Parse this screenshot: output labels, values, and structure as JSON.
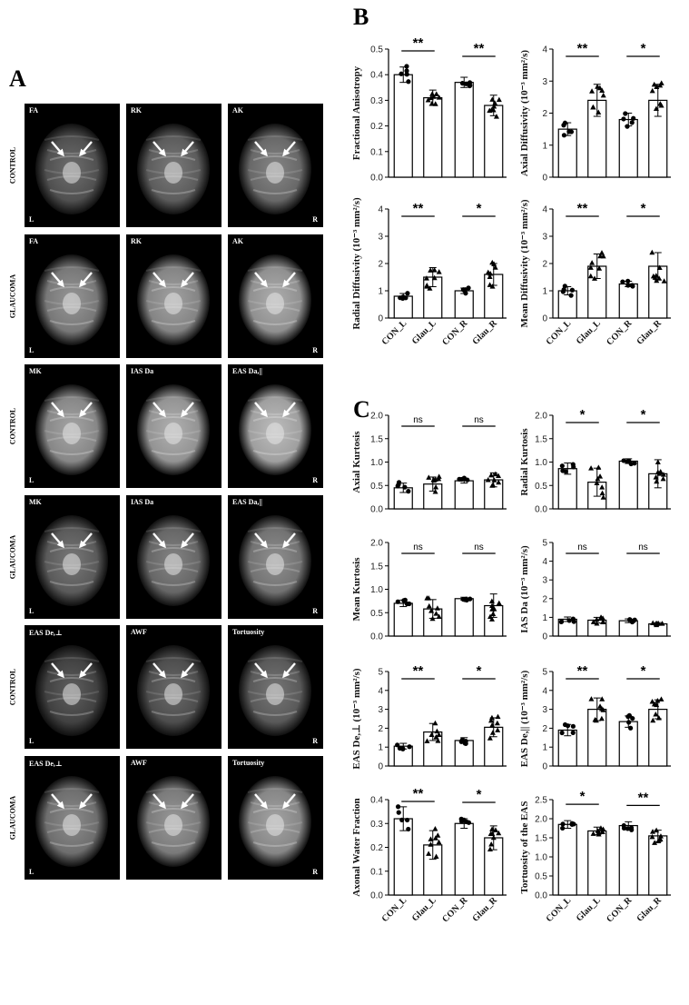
{
  "panel_labels": {
    "a": "A",
    "b": "B",
    "c": "C"
  },
  "image_grid": {
    "rows": [
      {
        "group": "CONTROL",
        "tiles": [
          "FA",
          "RK",
          "AK"
        ]
      },
      {
        "group": "GLAUCOMA",
        "tiles": [
          "FA",
          "RK",
          "AK"
        ]
      },
      {
        "group": "CONTROL",
        "tiles": [
          "MK",
          "IAS Da",
          "EAS Da,||"
        ]
      },
      {
        "group": "GLAUCOMA",
        "tiles": [
          "MK",
          "IAS Da",
          "EAS Da,||"
        ]
      },
      {
        "group": "CONTROL",
        "tiles": [
          "EAS De,⊥",
          "AWF",
          "Tortuosity"
        ]
      },
      {
        "group": "GLAUCOMA",
        "tiles": [
          "EAS De,⊥",
          "AWF",
          "Tortuosity"
        ]
      }
    ],
    "corner_left": "L",
    "corner_right": "R"
  },
  "chart_data": [
    {
      "type": "bar",
      "panel": "B",
      "categories": [
        "CON_L",
        "Glau_L",
        "CON_R",
        "Glau_R"
      ],
      "values": [
        0.4,
        0.31,
        0.37,
        0.28
      ],
      "errors": [
        0.03,
        0.03,
        0.02,
        0.04
      ],
      "ylabel": "Fractional Anisotropy",
      "ylim": [
        0,
        0.5
      ],
      "yticks": [
        "0.0",
        "0.1",
        "0.2",
        "0.3",
        "0.4",
        "0.5"
      ],
      "significance": [
        "**",
        "**"
      ]
    },
    {
      "type": "bar",
      "panel": "B",
      "categories": [
        "CON_L",
        "Glau_L",
        "CON_R",
        "Glau_R"
      ],
      "values": [
        1.5,
        2.4,
        1.8,
        2.4
      ],
      "errors": [
        0.2,
        0.5,
        0.2,
        0.5
      ],
      "ylabel": "Axial Diffusivity (10⁻³ mm²/s)",
      "ylim": [
        0,
        4
      ],
      "yticks": [
        "0",
        "1",
        "2",
        "3",
        "4"
      ],
      "significance": [
        "**",
        "*"
      ]
    },
    {
      "type": "bar",
      "panel": "B",
      "categories": [
        "CON_L",
        "Glau_L",
        "CON_R",
        "Glau_R"
      ],
      "values": [
        0.8,
        1.5,
        1.0,
        1.6
      ],
      "errors": [
        0.1,
        0.35,
        0.1,
        0.4
      ],
      "ylabel": "Radial Diffusivity (10⁻³ mm²/s)",
      "ylim": [
        0,
        4
      ],
      "yticks": [
        "0",
        "1",
        "2",
        "3",
        "4"
      ],
      "significance": [
        "**",
        "*"
      ]
    },
    {
      "type": "bar",
      "panel": "B",
      "categories": [
        "CON_L",
        "Glau_L",
        "CON_R",
        "Glau_R"
      ],
      "values": [
        1.0,
        1.9,
        1.25,
        1.9
      ],
      "errors": [
        0.15,
        0.45,
        0.1,
        0.5
      ],
      "ylabel": "Mean Diffusivity (10⁻³ mm²/s)",
      "ylim": [
        0,
        4
      ],
      "yticks": [
        "0",
        "1",
        "2",
        "3",
        "4"
      ],
      "significance": [
        "**",
        "*"
      ]
    },
    {
      "type": "bar",
      "panel": "C",
      "categories": [
        "CON_L",
        "Glau_L",
        "CON_R",
        "Glau_R"
      ],
      "values": [
        0.45,
        0.53,
        0.6,
        0.62
      ],
      "errors": [
        0.1,
        0.15,
        0.05,
        0.15
      ],
      "ylabel": "Axial Kurtosis",
      "ylim": [
        0,
        2.0
      ],
      "yticks": [
        "0.0",
        "0.5",
        "1.0",
        "1.5",
        "2.0"
      ],
      "significance": [
        "ns",
        "ns"
      ]
    },
    {
      "type": "bar",
      "panel": "C",
      "categories": [
        "CON_L",
        "Glau_L",
        "CON_R",
        "Glau_R"
      ],
      "values": [
        0.86,
        0.57,
        1.02,
        0.75
      ],
      "errors": [
        0.12,
        0.3,
        0.05,
        0.3
      ],
      "ylabel": "Radial Kurtosis",
      "ylim": [
        0,
        2.0
      ],
      "yticks": [
        "0.0",
        "0.5",
        "1.0",
        "1.5",
        "2.0"
      ],
      "significance": [
        "*",
        "*"
      ]
    },
    {
      "type": "bar",
      "panel": "C",
      "categories": [
        "CON_L",
        "Glau_L",
        "CON_R",
        "Glau_R"
      ],
      "values": [
        0.7,
        0.58,
        0.8,
        0.65
      ],
      "errors": [
        0.07,
        0.2,
        0.03,
        0.25
      ],
      "ylabel": "Mean Kurtosis",
      "ylim": [
        0,
        2.0
      ],
      "yticks": [
        "0.0",
        "0.5",
        "1.0",
        "1.5",
        "2.0"
      ],
      "significance": [
        "ns",
        "ns"
      ]
    },
    {
      "type": "bar",
      "panel": "C",
      "categories": [
        "CON_L",
        "Glau_L",
        "CON_R",
        "Glau_R"
      ],
      "values": [
        0.9,
        0.85,
        0.82,
        0.65
      ],
      "errors": [
        0.12,
        0.15,
        0.1,
        0.07
      ],
      "ylabel": "IAS Da (10⁻³ mm²/s)",
      "ylim": [
        0,
        5
      ],
      "yticks": [
        "0",
        "1",
        "2",
        "3",
        "4",
        "5"
      ],
      "significance": [
        "ns",
        "ns"
      ]
    },
    {
      "type": "bar",
      "panel": "C",
      "categories": [
        "CON_L",
        "Glau_L",
        "CON_R",
        "Glau_R"
      ],
      "values": [
        1.05,
        1.8,
        1.35,
        2.05
      ],
      "errors": [
        0.15,
        0.45,
        0.15,
        0.5
      ],
      "ylabel": "EAS De,⊥ (10⁻³ mm²/s)",
      "ylim": [
        0,
        5
      ],
      "yticks": [
        "0",
        "1",
        "2",
        "3",
        "4",
        "5"
      ],
      "significance": [
        "**",
        "*"
      ]
    },
    {
      "type": "bar",
      "panel": "C",
      "categories": [
        "CON_L",
        "Glau_L",
        "CON_R",
        "Glau_R"
      ],
      "values": [
        1.9,
        3.0,
        2.35,
        3.0
      ],
      "errors": [
        0.3,
        0.6,
        0.3,
        0.5
      ],
      "ylabel": "EAS De,|| (10⁻³ mm²/s)",
      "ylim": [
        0,
        5
      ],
      "yticks": [
        "0",
        "1",
        "2",
        "3",
        "4",
        "5"
      ],
      "significance": [
        "**",
        "*"
      ]
    },
    {
      "type": "bar",
      "panel": "C",
      "categories": [
        "CON_L",
        "Glau_L",
        "CON_R",
        "Glau_R"
      ],
      "values": [
        0.32,
        0.21,
        0.3,
        0.24
      ],
      "errors": [
        0.05,
        0.06,
        0.02,
        0.05
      ],
      "ylabel": "Axonal Water Fraction",
      "ylim": [
        0,
        0.4
      ],
      "yticks": [
        "0.0",
        "0.1",
        "0.2",
        "0.3",
        "0.4"
      ],
      "significance": [
        "**",
        "*"
      ]
    },
    {
      "type": "bar",
      "panel": "C",
      "categories": [
        "CON_L",
        "Glau_L",
        "CON_R",
        "Glau_R"
      ],
      "values": [
        1.85,
        1.68,
        1.82,
        1.55
      ],
      "errors": [
        0.1,
        0.1,
        0.1,
        0.15
      ],
      "ylabel": "Tortuosity of the EAS",
      "ylim": [
        0,
        2.5
      ],
      "yticks": [
        "0.0",
        "0.5",
        "1.0",
        "1.5",
        "2.0",
        "2.5"
      ],
      "significance": [
        "*",
        "**"
      ]
    }
  ]
}
